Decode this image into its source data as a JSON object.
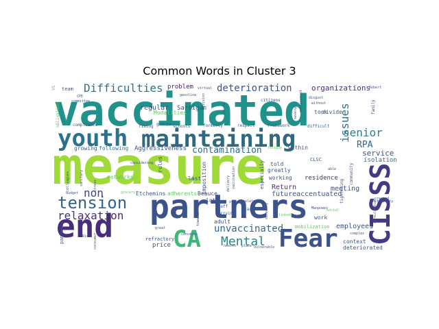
{
  "chart_data": {
    "type": "wordcloud",
    "title": "Common Words in Cluster 3",
    "background": "#ffffff",
    "colormap": "viridis",
    "words": [
      {
        "text": "measure",
        "color": "#a0da39"
      },
      {
        "text": "vaccinated",
        "color": "#21918c"
      },
      {
        "text": "partners",
        "color": "#3b528b"
      },
      {
        "text": "end",
        "color": "#472d7b"
      },
      {
        "text": "maintaining",
        "color": "#30697f"
      },
      {
        "text": "youth",
        "color": "#2c728e"
      },
      {
        "text": "Fear",
        "color": "#3b528b"
      },
      {
        "text": "CISSS",
        "color": "#443a83"
      },
      {
        "text": "CA",
        "color": "#3aba76"
      },
      {
        "text": "tension",
        "color": "#33638d"
      },
      {
        "text": "relaxation",
        "color": "#472d7b"
      },
      {
        "text": "Difficulties",
        "color": "#2c728e"
      },
      {
        "text": "Mental",
        "color": "#238a8d"
      },
      {
        "text": "unvaccinated",
        "color": "#31668e"
      },
      {
        "text": "senior",
        "color": "#26828e"
      },
      {
        "text": "issues",
        "color": "#2c728e"
      },
      {
        "text": "deterioration",
        "color": "#3b528b"
      },
      {
        "text": "non",
        "color": "#404387"
      },
      {
        "text": "contamination",
        "color": "#2f6c8e"
      },
      {
        "text": "RPA",
        "color": "#33638d"
      },
      {
        "text": "service",
        "color": "#3b528b"
      },
      {
        "text": "organizations",
        "color": "#472d7b"
      },
      {
        "text": "futureaccentuated",
        "color": "#3b528b"
      },
      {
        "text": "employees",
        "color": "#3b528b"
      },
      {
        "text": "Return",
        "color": "#472d7b"
      },
      {
        "text": "meeting",
        "color": "#3b528b"
      },
      {
        "text": "isolation",
        "color": "#2c728e"
      },
      {
        "text": "residence",
        "color": "#472d7b"
      },
      {
        "text": "regular",
        "color": "#3b528b"
      },
      {
        "text": "Sartigan",
        "color": "#3b528b"
      },
      {
        "text": "problem",
        "color": "#482173"
      },
      {
        "text": "Aggressiveness",
        "color": "#3b528b"
      },
      {
        "text": "growing",
        "color": "#3b528b"
      },
      {
        "text": "following",
        "color": "#2c728e"
      },
      {
        "text": "Modalities",
        "color": "#5ec962"
      },
      {
        "text": "adherents",
        "color": "#5ec962"
      },
      {
        "text": "Beauce",
        "color": "#404387"
      },
      {
        "text": "Etchemins",
        "color": "#3b528b"
      },
      {
        "text": "networks",
        "color": "#5ec962"
      },
      {
        "text": "imposition",
        "color": "#3b528b"
      },
      {
        "text": "rules",
        "color": "#3b528b"
      },
      {
        "text": "last",
        "color": "#3b528b"
      },
      {
        "text": "lot",
        "color": "#3b528b"
      },
      {
        "text": "adult",
        "color": "#3b528b"
      },
      {
        "text": "price",
        "color": "#3b528b"
      },
      {
        "text": "context",
        "color": "#3b528b"
      },
      {
        "text": "deteriorated",
        "color": "#3b528b"
      },
      {
        "text": "work",
        "color": "#3b528b"
      },
      {
        "text": "working",
        "color": "#3b528b"
      },
      {
        "text": "told",
        "color": "#3b528b"
      },
      {
        "text": "greatly",
        "color": "#3b528b"
      },
      {
        "text": "within",
        "color": "#3b528b"
      },
      {
        "text": "took",
        "color": "#3b528b"
      },
      {
        "text": "divide",
        "color": "#3b528b"
      },
      {
        "text": "especially",
        "color": "#3b528b"
      },
      {
        "text": "CLSC",
        "color": "#3b528b"
      },
      {
        "text": "team",
        "color": "#3b528b"
      },
      {
        "text": "mobilization",
        "color": "#5ec962"
      },
      {
        "text": "refractory",
        "color": "#3b528b"
      },
      {
        "text": "pandemic",
        "color": "#3b528b"
      },
      {
        "text": "staff",
        "color": "#3b528b"
      },
      {
        "text": "carrying",
        "color": "#3b528b"
      },
      {
        "text": "cart",
        "color": "#3b528b"
      },
      {
        "text": "tightening",
        "color": "#3b528b"
      },
      {
        "text": "community",
        "color": "#3b528b"
      },
      {
        "text": "citizens",
        "color": "#3b528b"
      },
      {
        "text": "respect",
        "color": "#3b528b"
      },
      {
        "text": "framework",
        "color": "#3b528b"
      },
      {
        "text": "difficult",
        "color": "#3b528b"
      },
      {
        "text": "formerly",
        "color": "#3b528b"
      },
      {
        "text": "schools",
        "color": "#3b528b"
      },
      {
        "text": "rising",
        "color": "#3b528b"
      },
      {
        "text": "groups",
        "color": "#3b528b"
      },
      {
        "text": "family",
        "color": "#3b528b"
      },
      {
        "text": "Robert",
        "color": "#3b528b"
      },
      {
        "text": "obligation",
        "color": "#5ec962"
      },
      {
        "text": "compliance",
        "color": "#3b528b"
      },
      {
        "text": "committee",
        "color": "#3b528b"
      },
      {
        "text": "gasoline",
        "color": "#3b528b"
      },
      {
        "text": "virtual",
        "color": "#3b528b"
      },
      {
        "text": "division",
        "color": "#3b528b"
      },
      {
        "text": "years",
        "color": "#3b528b"
      },
      {
        "text": "considering",
        "color": "#3b528b"
      },
      {
        "text": "sanitary",
        "color": "#3b528b"
      },
      {
        "text": "colleagues",
        "color": "#3b528b"
      },
      {
        "text": "budget",
        "color": "#3b528b"
      },
      {
        "text": "stress",
        "color": "#3b528b"
      },
      {
        "text": "grocery",
        "color": "#5ec962"
      },
      {
        "text": "delivery",
        "color": "#3b528b"
      },
      {
        "text": "vaccination",
        "color": "#3b528b"
      },
      {
        "text": "created",
        "color": "#3b528b"
      },
      {
        "text": "instability",
        "color": "#3b528b"
      },
      {
        "text": "disgust",
        "color": "#3b528b"
      },
      {
        "text": "without",
        "color": "#3b528b"
      },
      {
        "text": "confinement",
        "color": "#3b528b"
      },
      {
        "text": "able",
        "color": "#3b528b"
      },
      {
        "text": "fatigue",
        "color": "#5ec962"
      },
      {
        "text": "concerns",
        "color": "#3b528b"
      },
      {
        "text": "great",
        "color": "#3b528b"
      },
      {
        "text": "towards",
        "color": "#3b528b"
      },
      {
        "text": "others",
        "color": "#3b528b"
      },
      {
        "text": "related",
        "color": "#3b528b"
      },
      {
        "text": "health",
        "color": "#3b528b"
      },
      {
        "text": "place",
        "color": "#3b528b"
      },
      {
        "text": "vulnerable",
        "color": "#3b528b"
      },
      {
        "text": "Manpower",
        "color": "#3b528b"
      },
      {
        "text": "Social",
        "color": "#5ec962"
      },
      {
        "text": "complex",
        "color": "#3b528b"
      },
      {
        "text": "consultation",
        "color": "#3b528b"
      },
      {
        "text": "Rise",
        "color": "#3b528b"
      },
      {
        "text": "consumer",
        "color": "#3b528b"
      },
      {
        "text": "cliche",
        "color": "#3b528b"
      },
      {
        "text": "CPE",
        "color": "#3b528b"
      },
      {
        "text": "several",
        "color": "#3b528b"
      },
      {
        "text": "linked",
        "color": "#5ec962"
      },
      {
        "text": "directly",
        "color": "#3b528b"
      },
      {
        "text": "VS",
        "color": "#5ec962"
      }
    ]
  }
}
